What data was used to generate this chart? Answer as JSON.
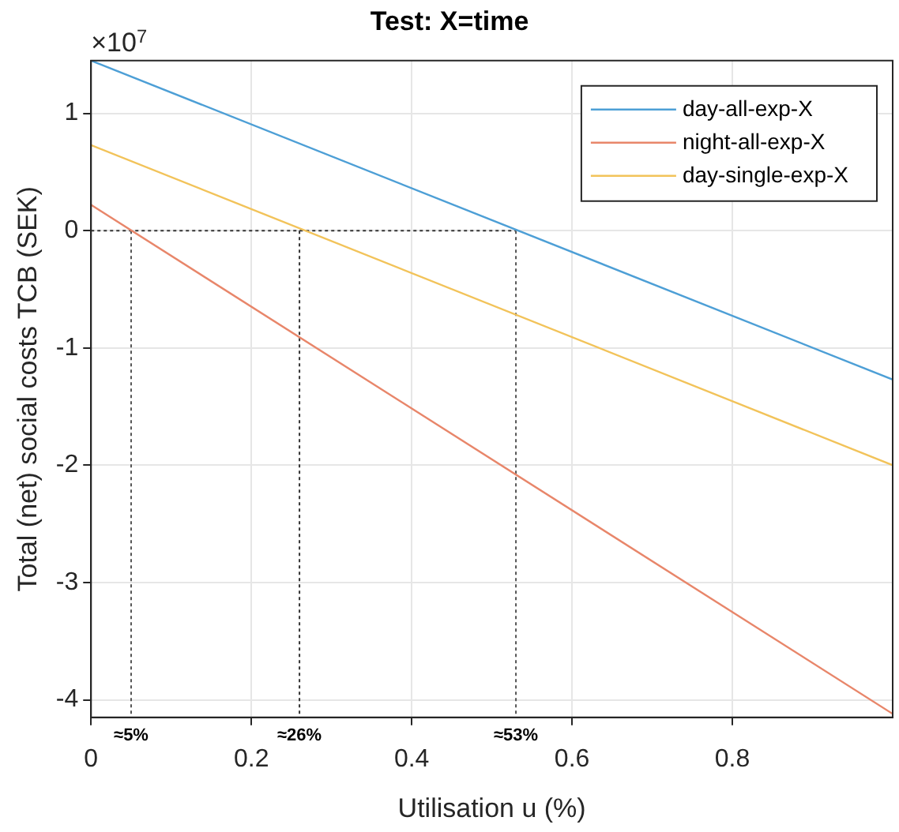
{
  "chart_data": {
    "type": "line",
    "title": "Test: X=time",
    "xlabel": "Utilisation u (%)",
    "ylabel": "Total (net) social costs TCB (SEK)",
    "annotations": [
      "×10$^{7}$"
    ],
    "x": [
      0,
      1
    ],
    "series": [
      {
        "name": "day-all-exp-X",
        "color": "#4d9fd6",
        "values": [
          1.45,
          -1.27
        ]
      },
      {
        "name": "night-all-exp-X",
        "color": "#e8866a",
        "values": [
          0.22,
          -4.12
        ]
      },
      {
        "name": "day-single-exp-X",
        "color": "#f2c35a",
        "values": [
          0.73,
          -2.0
        ]
      }
    ],
    "ref_lines": [
      {
        "axis": "y",
        "value": 0,
        "label": null,
        "color": "#333333",
        "line_style": "dotted"
      },
      {
        "axis": "x",
        "value": 0.05,
        "label": "≈5%",
        "color": "#555555",
        "line_style": "dotted"
      },
      {
        "axis": "x",
        "value": 0.26,
        "label": "≈26%",
        "color": "#333333",
        "line_style": "dotted"
      },
      {
        "axis": "x",
        "value": 0.53,
        "label": "≈53%",
        "color": "#555555",
        "line_style": "dotted"
      }
    ],
    "xlim": [
      0,
      1
    ],
    "xticks": [
      0,
      0.2,
      0.4,
      0.6,
      0.8
    ],
    "ylim": [
      -4.15,
      1.45
    ],
    "yticks": [
      -4,
      -3,
      -2,
      -1,
      0,
      1
    ],
    "grid": true,
    "legend": "top right",
    "marker": "none",
    "line_style": "solid"
  }
}
